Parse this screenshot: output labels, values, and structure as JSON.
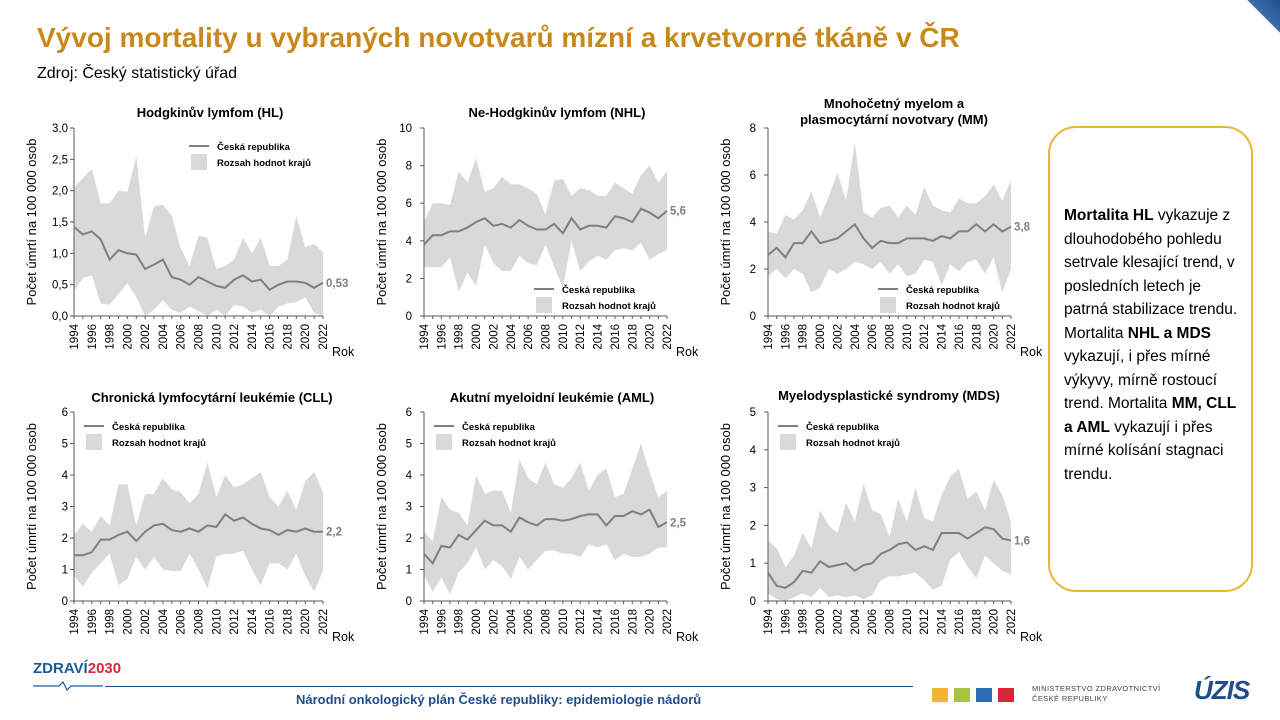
{
  "page": {
    "title": "Vývoj mortality u vybraných novotvarů mízní a krvetvorné tkáně v ČR",
    "source": "Zdroj: Český statistický úřad",
    "footer": "Národní onkologický plán České republiky: epidemiologie nádorů",
    "logo_left": [
      "ZDRAVÍ",
      "2030"
    ],
    "ministry": [
      "MINISTERSTVO ZDRAVOTNICTVÍ",
      "ČESKÉ REPUBLIKY"
    ],
    "logo_right": "ÚZIS",
    "colors": {
      "title": "#c8881a",
      "line": "#7f7f7f",
      "band": "#d9d9d9",
      "note_border": "#e9b43c",
      "footer": "#1f4e8c"
    }
  },
  "note": [
    {
      "text": "Mortalita HL",
      "bold": true
    },
    {
      "text": " vykazuje z dlouhodobého pohledu setrvale klesající trend, v posledních letech je patrná stabilizace trendu. Mortalita ",
      "bold": false
    },
    {
      "text": "NHL a MDS",
      "bold": true
    },
    {
      "text": " vykazují, i přes mírné výkyvy, mírně rostoucí trend. Mortalita ",
      "bold": false
    },
    {
      "text": "MM, CLL a AML",
      "bold": true
    },
    {
      "text": " vykazují i přes mírné kolísání stagnaci trendu.",
      "bold": false
    }
  ],
  "chart_data": [
    {
      "type": "area",
      "title": "Hodgkinův lymfom (HL)",
      "ylabel": "Počet úmrtí na 100 000 osob",
      "xlabel": "Rok",
      "ylim": [
        0,
        3
      ],
      "yticks": [
        "0,0",
        "0,5",
        "1,0",
        "1,5",
        "2,0",
        "2,5",
        "3,0"
      ],
      "x": [
        1994,
        1995,
        1996,
        1997,
        1998,
        1999,
        2000,
        2001,
        2002,
        2003,
        2004,
        2005,
        2006,
        2007,
        2008,
        2009,
        2010,
        2011,
        2012,
        2013,
        2014,
        2015,
        2016,
        2017,
        2018,
        2019,
        2020,
        2021,
        2022
      ],
      "xticks": [
        "1994",
        "1996",
        "1998",
        "2000",
        "2002",
        "2004",
        "2006",
        "2008",
        "2010",
        "2012",
        "2014",
        "2016",
        "2018",
        "2020",
        "2022"
      ],
      "legend": {
        "position": "top-right",
        "entries": [
          "Česká republika",
          "Rozsah hodnot  krajů"
        ]
      },
      "end_label": "0,53",
      "series": [
        {
          "name": "Česká republika",
          "values": [
            1.42,
            1.3,
            1.35,
            1.22,
            0.9,
            1.05,
            1.0,
            0.98,
            0.75,
            0.82,
            0.9,
            0.62,
            0.58,
            0.5,
            0.62,
            0.55,
            0.48,
            0.45,
            0.58,
            0.65,
            0.55,
            0.58,
            0.42,
            0.5,
            0.55,
            0.55,
            0.53,
            0.45,
            0.53
          ]
        },
        {
          "name": "Rozsah hodnot  krajů",
          "lower": [
            0.4,
            0.6,
            0.65,
            0.2,
            0.18,
            0.35,
            0.52,
            0.3,
            0.0,
            0.1,
            0.25,
            0.1,
            0.05,
            0.15,
            0.08,
            0.0,
            0.1,
            0.0,
            0.18,
            0.15,
            0.05,
            0.1,
            0.0,
            0.15,
            0.2,
            0.22,
            0.3,
            0.05,
            0.0
          ],
          "upper": [
            2.05,
            2.2,
            2.35,
            1.8,
            1.8,
            2.0,
            1.98,
            2.55,
            1.25,
            1.75,
            1.78,
            1.6,
            1.08,
            0.8,
            1.28,
            1.25,
            0.75,
            0.8,
            0.9,
            1.25,
            1.0,
            1.25,
            0.8,
            0.8,
            0.9,
            1.6,
            1.1,
            1.15,
            1.02
          ]
        }
      ]
    },
    {
      "type": "area",
      "title": "Ne-Hodgkinův lymfom (NHL)",
      "ylabel": "Počet úmrtí na 100 000 osob",
      "xlabel": "Rok",
      "ylim": [
        0,
        10
      ],
      "yticks": [
        "0",
        "2",
        "4",
        "6",
        "8",
        "10"
      ],
      "x": [
        1994,
        1995,
        1996,
        1997,
        1998,
        1999,
        2000,
        2001,
        2002,
        2003,
        2004,
        2005,
        2006,
        2007,
        2008,
        2009,
        2010,
        2011,
        2012,
        2013,
        2014,
        2015,
        2016,
        2017,
        2018,
        2019,
        2020,
        2021,
        2022
      ],
      "xticks": [
        "1994",
        "1996",
        "1998",
        "2000",
        "2002",
        "2004",
        "2006",
        "2008",
        "2010",
        "2012",
        "2014",
        "2016",
        "2018",
        "2020",
        "2022"
      ],
      "legend": {
        "position": "bottom-right",
        "entries": [
          "Česká republika",
          "Rozsah hodnot  krajů"
        ]
      },
      "end_label": "5,6",
      "series": [
        {
          "name": "Česká republika",
          "values": [
            3.8,
            4.3,
            4.3,
            4.5,
            4.5,
            4.7,
            5.0,
            5.2,
            4.8,
            4.9,
            4.7,
            5.1,
            4.8,
            4.6,
            4.6,
            4.9,
            4.4,
            5.2,
            4.6,
            4.8,
            4.8,
            4.7,
            5.3,
            5.2,
            5.0,
            5.7,
            5.5,
            5.2,
            5.6
          ]
        },
        {
          "name": "Rozsah hodnot  krajů",
          "lower": [
            2.6,
            2.6,
            2.6,
            3.1,
            1.3,
            2.3,
            1.6,
            3.8,
            2.8,
            2.4,
            2.4,
            3.2,
            2.8,
            2.7,
            3.8,
            2.6,
            1.5,
            4.0,
            2.4,
            2.9,
            3.2,
            3.0,
            3.5,
            3.6,
            3.5,
            3.9,
            3.0,
            3.3,
            3.5
          ]
        }
      ]
    },
    {
      "type": "area",
      "title": "Mnohočetný myelom a plasmocytární novotvary (MM)",
      "ylabel": "Počet úmrtí na 100 000 osob",
      "xlabel": "Rok",
      "ylim": [
        0,
        8
      ],
      "yticks": [
        "0",
        "2",
        "4",
        "6",
        "8"
      ],
      "x": [
        1994,
        1995,
        1996,
        1997,
        1998,
        1999,
        2000,
        2001,
        2002,
        2003,
        2004,
        2005,
        2006,
        2007,
        2008,
        2009,
        2010,
        2011,
        2012,
        2013,
        2014,
        2015,
        2016,
        2017,
        2018,
        2019,
        2020,
        2021,
        2022
      ],
      "xticks": [
        "1994",
        "1996",
        "1998",
        "2000",
        "2002",
        "2004",
        "2006",
        "2008",
        "2010",
        "2012",
        "2014",
        "2016",
        "2018",
        "2020",
        "2022"
      ],
      "legend": {
        "position": "bottom-right",
        "entries": [
          "Česká republika",
          "Rozsah hodnot  krajů"
        ]
      },
      "end_label": "3,8",
      "series": [
        {
          "name": "Česká republika",
          "values": [
            2.6,
            2.9,
            2.5,
            3.1,
            3.1,
            3.6,
            3.1,
            3.2,
            3.3,
            3.6,
            3.9,
            3.3,
            2.9,
            3.2,
            3.1,
            3.1,
            3.3,
            3.3,
            3.3,
            3.2,
            3.4,
            3.3,
            3.6,
            3.6,
            3.9,
            3.6,
            3.9,
            3.6,
            3.8
          ]
        },
        {
          "name": "Rozsah hodnot  krajů",
          "lower": [
            1.7,
            2.0,
            1.6,
            2.0,
            1.8,
            1.0,
            1.2,
            2.0,
            1.8,
            2.0,
            2.3,
            2.2,
            2.0,
            2.3,
            1.8,
            2.2,
            1.7,
            1.8,
            2.4,
            2.3,
            1.3,
            2.2,
            1.9,
            2.3,
            2.4,
            1.8,
            2.5,
            1.0,
            2.0
          ],
          "upper": [
            3.6,
            3.5,
            4.3,
            4.1,
            4.5,
            5.3,
            4.2,
            5.1,
            6.1,
            4.9,
            7.4,
            4.4,
            4.2,
            4.6,
            4.7,
            4.2,
            4.7,
            4.3,
            5.5,
            4.7,
            4.5,
            4.4,
            5.0,
            4.8,
            4.8,
            5.1,
            5.6,
            4.9,
            5.8
          ]
        }
      ]
    },
    {
      "type": "area",
      "title": "Chronická lymfocytární leukémie (CLL)",
      "ylabel": "Počet úmrtí na 100 000 osob",
      "xlabel": "Rok",
      "ylim": [
        0,
        6
      ],
      "yticks": [
        "0",
        "1",
        "2",
        "3",
        "4",
        "5",
        "6"
      ],
      "x": [
        1994,
        1995,
        1996,
        1997,
        1998,
        1999,
        2000,
        2001,
        2002,
        2003,
        2004,
        2005,
        2006,
        2007,
        2008,
        2009,
        2010,
        2011,
        2012,
        2013,
        2014,
        2015,
        2016,
        2017,
        2018,
        2019,
        2020,
        2021,
        2022
      ],
      "xticks": [
        "1994",
        "1996",
        "1998",
        "2000",
        "2002",
        "2004",
        "2006",
        "2008",
        "2010",
        "2012",
        "2014",
        "2016",
        "2018",
        "2020",
        "2022"
      ],
      "legend": {
        "position": "top-left",
        "entries": [
          "Česká republika",
          "Rozsah hodnot  krajů"
        ]
      },
      "end_label": "2,2",
      "series": [
        {
          "name": "Česká republika",
          "values": [
            1.45,
            1.45,
            1.55,
            1.95,
            1.95,
            2.1,
            2.2,
            1.9,
            2.2,
            2.4,
            2.45,
            2.25,
            2.2,
            2.3,
            2.2,
            2.4,
            2.35,
            2.75,
            2.55,
            2.65,
            2.45,
            2.3,
            2.25,
            2.1,
            2.25,
            2.2,
            2.3,
            2.2,
            2.2
          ]
        },
        {
          "name": "Rozsah hodnot  krajů",
          "lower": [
            0.8,
            0.45,
            0.9,
            1.2,
            1.5,
            0.5,
            0.7,
            1.4,
            1.0,
            1.4,
            1.0,
            0.95,
            0.95,
            1.5,
            1.0,
            0.4,
            1.4,
            1.5,
            1.5,
            1.6,
            1.0,
            0.5,
            1.2,
            1.2,
            1.0,
            1.5,
            0.8,
            0.3,
            0.95
          ]
        }
      ]
    },
    {
      "type": "area",
      "title": "Akutní myeloidní leukémie (AML)",
      "ylabel": "Počet úmrtí na 100 000 osob",
      "xlabel": "Rok",
      "ylim": [
        0,
        6
      ],
      "yticks": [
        "0",
        "1",
        "2",
        "3",
        "4",
        "5",
        "6"
      ],
      "x": [
        1994,
        1995,
        1996,
        1997,
        1998,
        1999,
        2000,
        2001,
        2002,
        2003,
        2004,
        2005,
        2006,
        2007,
        2008,
        2009,
        2010,
        2011,
        2012,
        2013,
        2014,
        2015,
        2016,
        2017,
        2018,
        2019,
        2020,
        2021,
        2022
      ],
      "xticks": [
        "1994",
        "1996",
        "1998",
        "2000",
        "2002",
        "2004",
        "2006",
        "2008",
        "2010",
        "2012",
        "2014",
        "2016",
        "2018",
        "2020",
        "2022"
      ],
      "legend": {
        "position": "top-left",
        "entries": [
          "Česká republika",
          "Rozsah hodnot  krajů"
        ]
      },
      "end_label": "2,5",
      "series": [
        {
          "name": "Česká republika",
          "values": [
            1.5,
            1.2,
            1.75,
            1.7,
            2.1,
            1.95,
            2.25,
            2.55,
            2.4,
            2.4,
            2.2,
            2.65,
            2.5,
            2.4,
            2.6,
            2.6,
            2.55,
            2.6,
            2.7,
            2.75,
            2.75,
            2.4,
            2.7,
            2.7,
            2.85,
            2.75,
            2.9,
            2.35,
            2.5
          ]
        },
        {
          "name": "Rozsah hodnot  krajů",
          "lower": [
            0.8,
            0.3,
            0.75,
            0.2,
            0.9,
            1.2,
            1.7,
            1.0,
            1.3,
            1.1,
            0.7,
            1.4,
            1.0,
            1.3,
            1.6,
            1.6,
            1.5,
            1.5,
            1.4,
            1.8,
            1.7,
            1.8,
            1.3,
            1.5,
            1.4,
            1.4,
            1.5,
            1.7,
            1.7
          ],
          "upper": [
            2.2,
            1.9,
            3.3,
            2.9,
            2.8,
            2.4,
            4.0,
            3.4,
            3.5,
            3.5,
            2.8,
            4.5,
            3.9,
            3.7,
            4.4,
            3.7,
            3.6,
            3.9,
            4.4,
            3.5,
            4.0,
            4.2,
            3.3,
            3.4,
            4.2,
            5.0,
            4.1,
            3.3,
            3.5
          ]
        }
      ]
    },
    {
      "type": "area",
      "title": "Myelodysplastické syndromy (MDS)",
      "ylabel": "Počet úmrtí na 100 000 osob",
      "xlabel": "Rok",
      "ylim": [
        0,
        5
      ],
      "yticks": [
        "0",
        "1",
        "2",
        "3",
        "4",
        "5"
      ],
      "x": [
        1994,
        1995,
        1996,
        1997,
        1998,
        1999,
        2000,
        2001,
        2002,
        2003,
        2004,
        2005,
        2006,
        2007,
        2008,
        2009,
        2010,
        2011,
        2012,
        2013,
        2014,
        2015,
        2016,
        2017,
        2018,
        2019,
        2020,
        2021,
        2022
      ],
      "xticks": [
        "1994",
        "1996",
        "1998",
        "2000",
        "2002",
        "2004",
        "2006",
        "2008",
        "2010",
        "2012",
        "2014",
        "2016",
        "2018",
        "2020",
        "2022"
      ],
      "legend": {
        "position": "top-left",
        "entries": [
          "Česká republika",
          "Rozsah hodnot  krajů"
        ]
      },
      "end_label": "1,6",
      "series": [
        {
          "name": "Česká republika",
          "values": [
            0.75,
            0.4,
            0.35,
            0.5,
            0.8,
            0.75,
            1.05,
            0.9,
            0.95,
            1.0,
            0.8,
            0.95,
            1.0,
            1.25,
            1.35,
            1.5,
            1.55,
            1.35,
            1.45,
            1.35,
            1.8,
            1.8,
            1.8,
            1.65,
            1.8,
            1.95,
            1.9,
            1.65,
            1.6
          ]
        },
        {
          "name": "Rozsah hodnot  krajů",
          "lower": [
            0.2,
            0.05,
            0.0,
            0.1,
            0.2,
            0.1,
            0.35,
            0.1,
            0.15,
            0.1,
            0.15,
            0.05,
            0.15,
            0.55,
            0.65,
            0.65,
            0.7,
            0.75,
            0.55,
            0.3,
            0.4,
            1.1,
            1.3,
            0.9,
            0.6,
            1.2,
            1.0,
            0.8,
            0.7
          ],
          "upper": [
            1.6,
            1.4,
            0.9,
            1.2,
            1.8,
            1.4,
            2.4,
            2.0,
            1.8,
            2.6,
            2.1,
            3.1,
            2.4,
            2.3,
            1.7,
            2.7,
            2.1,
            3.0,
            2.2,
            2.1,
            2.8,
            3.3,
            3.5,
            2.7,
            2.9,
            2.4,
            3.2,
            2.8,
            2.1
          ]
        }
      ]
    }
  ]
}
